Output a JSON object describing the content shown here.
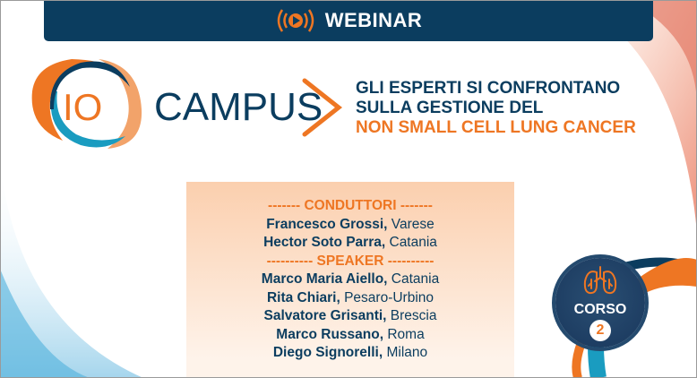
{
  "banner": {
    "title": "WEBINAR",
    "icon": "play-broadcast-icon"
  },
  "logo": {
    "prefix": "IO",
    "name": "CAMPUS"
  },
  "headline": {
    "line1": "GLI ESPERTI SI CONFRONTANO",
    "line2": "SULLA GESTIONE DEL",
    "line3": "NON SMALL CELL LUNG CANCER"
  },
  "panel": {
    "conduttori_label": "------- CONDUTTORI -------",
    "conduttori": [
      {
        "name": "Francesco Grossi,",
        "city": " Varese"
      },
      {
        "name": "Hector Soto Parra,",
        "city": " Catania"
      }
    ],
    "speaker_label": "---------- SPEAKER ----------",
    "speakers": [
      {
        "name": "Marco Maria Aiello,",
        "city": " Catania"
      },
      {
        "name": "Rita Chiari,",
        "city": " Pesaro-Urbino"
      },
      {
        "name": "Salvatore Grisanti,",
        "city": " Brescia"
      },
      {
        "name": "Marco Russano,",
        "city": " Roma"
      },
      {
        "name": "Diego Signorelli,",
        "city": " Milano"
      }
    ]
  },
  "badge": {
    "label": "CORSO",
    "number": "2",
    "icon": "lungs-icon"
  },
  "colors": {
    "navy": "#0b3d5f",
    "orange": "#ee7623",
    "teal": "#1a9cc0"
  }
}
